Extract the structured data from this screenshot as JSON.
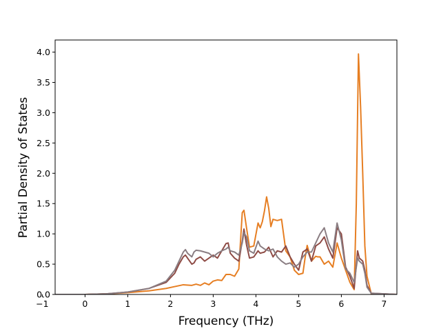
{
  "chart_data": {
    "type": "line",
    "title": "",
    "xlabel": "Frequency (THz)",
    "ylabel": "Partial Density of States",
    "xlim": [
      -0.7,
      7.3
    ],
    "ylim": [
      0,
      4.2
    ],
    "xticks": [
      -1,
      0,
      1,
      2,
      3,
      4,
      5,
      6,
      7
    ],
    "xtick_labels": [
      "−1",
      "0",
      "1",
      "2",
      "3",
      "4",
      "5",
      "6",
      "7"
    ],
    "yticks": [
      0,
      0.5,
      1,
      1.5,
      2,
      2.5,
      3,
      3.5,
      4
    ],
    "ytick_labels": [
      "0.0",
      "0.5",
      "1.0",
      "1.5",
      "2.0",
      "2.5",
      "3.0",
      "3.5",
      "4.0"
    ],
    "grid": false,
    "legend": "none",
    "series": [
      {
        "color": "#e67e22",
        "x": [
          -0.7,
          0,
          0.5,
          1.0,
          1.5,
          1.9,
          2.1,
          2.3,
          2.5,
          2.6,
          2.7,
          2.8,
          2.9,
          3.0,
          3.1,
          3.2,
          3.3,
          3.4,
          3.5,
          3.6,
          3.68,
          3.72,
          3.78,
          3.85,
          3.95,
          4.05,
          4.1,
          4.15,
          4.2,
          4.25,
          4.3,
          4.35,
          4.4,
          4.5,
          4.6,
          4.7,
          4.8,
          4.9,
          5.0,
          5.1,
          5.15,
          5.2,
          5.3,
          5.4,
          5.45,
          5.5,
          5.6,
          5.7,
          5.8,
          5.9,
          6.0,
          6.1,
          6.2,
          6.3,
          6.35,
          6.4,
          6.45,
          6.5,
          6.55,
          6.6,
          6.7,
          7.3
        ],
        "y": [
          0,
          0.0,
          0.01,
          0.03,
          0.06,
          0.1,
          0.13,
          0.16,
          0.15,
          0.17,
          0.15,
          0.19,
          0.16,
          0.22,
          0.24,
          0.23,
          0.33,
          0.33,
          0.3,
          0.42,
          1.35,
          1.39,
          1.1,
          0.78,
          0.8,
          1.18,
          1.1,
          1.2,
          1.38,
          1.61,
          1.42,
          1.12,
          1.24,
          1.22,
          1.24,
          0.72,
          0.62,
          0.4,
          0.33,
          0.35,
          0.6,
          0.81,
          0.55,
          0.63,
          0.62,
          0.62,
          0.5,
          0.55,
          0.45,
          0.85,
          0.6,
          0.4,
          0.2,
          0.08,
          1.5,
          3.97,
          3.1,
          2.0,
          0.8,
          0.3,
          0.01,
          0
        ]
      },
      {
        "color": "#8e4b45",
        "x": [
          -0.7,
          0,
          0.5,
          1.0,
          1.5,
          1.9,
          2.1,
          2.2,
          2.3,
          2.35,
          2.4,
          2.5,
          2.55,
          2.6,
          2.7,
          2.8,
          2.9,
          3.0,
          3.1,
          3.2,
          3.3,
          3.35,
          3.4,
          3.5,
          3.6,
          3.68,
          3.72,
          3.78,
          3.85,
          3.95,
          4.05,
          4.1,
          4.2,
          4.3,
          4.4,
          4.5,
          4.6,
          4.7,
          4.8,
          4.9,
          5.0,
          5.1,
          5.2,
          5.3,
          5.4,
          5.5,
          5.6,
          5.7,
          5.8,
          5.9,
          6.0,
          6.1,
          6.2,
          6.3,
          6.38,
          6.42,
          6.5,
          6.55,
          6.6,
          6.7,
          7.3
        ],
        "y": [
          0,
          0.0,
          0.01,
          0.04,
          0.1,
          0.2,
          0.35,
          0.5,
          0.62,
          0.65,
          0.6,
          0.5,
          0.52,
          0.58,
          0.62,
          0.55,
          0.6,
          0.65,
          0.6,
          0.72,
          0.84,
          0.85,
          0.68,
          0.6,
          0.55,
          0.88,
          1.08,
          0.82,
          0.6,
          0.62,
          0.72,
          0.68,
          0.7,
          0.78,
          0.62,
          0.72,
          0.7,
          0.8,
          0.62,
          0.5,
          0.4,
          0.7,
          0.75,
          0.55,
          0.8,
          0.85,
          0.95,
          0.75,
          0.6,
          1.1,
          1.0,
          0.45,
          0.3,
          0.1,
          0.72,
          0.6,
          0.55,
          0.4,
          0.15,
          0.02,
          0
        ]
      },
      {
        "color": "#8a7d82",
        "x": [
          -0.7,
          0,
          0.5,
          1.0,
          1.5,
          1.9,
          2.1,
          2.2,
          2.3,
          2.35,
          2.4,
          2.5,
          2.55,
          2.6,
          2.7,
          2.8,
          2.9,
          3.0,
          3.1,
          3.2,
          3.3,
          3.35,
          3.4,
          3.5,
          3.6,
          3.68,
          3.72,
          3.78,
          3.85,
          3.95,
          4.05,
          4.1,
          4.2,
          4.3,
          4.4,
          4.5,
          4.6,
          4.7,
          4.8,
          4.9,
          5.0,
          5.1,
          5.2,
          5.3,
          5.4,
          5.5,
          5.6,
          5.7,
          5.8,
          5.9,
          6.0,
          6.1,
          6.2,
          6.3,
          6.38,
          6.42,
          6.5,
          6.55,
          6.6,
          6.7,
          7.3
        ],
        "y": [
          0,
          0.0,
          0.01,
          0.04,
          0.1,
          0.22,
          0.4,
          0.55,
          0.7,
          0.74,
          0.68,
          0.62,
          0.7,
          0.73,
          0.72,
          0.7,
          0.68,
          0.62,
          0.68,
          0.72,
          0.75,
          0.78,
          0.72,
          0.7,
          0.65,
          0.85,
          1.02,
          0.95,
          0.72,
          0.68,
          0.88,
          0.8,
          0.75,
          0.72,
          0.75,
          0.62,
          0.55,
          0.5,
          0.52,
          0.45,
          0.5,
          0.62,
          0.7,
          0.7,
          0.85,
          1.0,
          1.1,
          0.85,
          0.7,
          1.18,
          0.9,
          0.42,
          0.35,
          0.2,
          0.6,
          0.55,
          0.5,
          0.35,
          0.12,
          0.02,
          0
        ]
      }
    ]
  }
}
